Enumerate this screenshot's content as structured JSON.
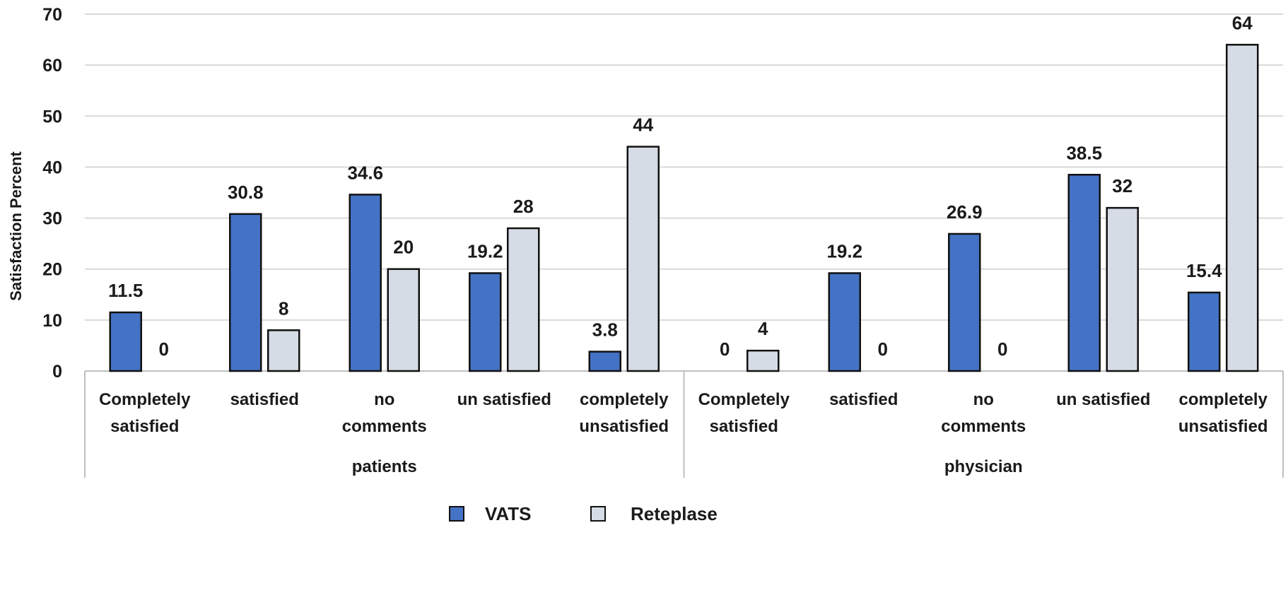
{
  "chart_data": {
    "type": "bar",
    "title": "",
    "xlabel": "",
    "ylabel": "Satisfaction Percent",
    "ylim": [
      0,
      70
    ],
    "yticks": [
      0,
      10,
      20,
      30,
      40,
      50,
      60,
      70
    ],
    "grid": true,
    "legend_position": "bottom",
    "groups": [
      {
        "name": "patients",
        "categories": [
          [
            "Completely",
            "satisfied"
          ],
          [
            "satisfied"
          ],
          [
            "no",
            "comments"
          ],
          [
            "un satisfied"
          ],
          [
            "completely",
            "unsatisfied"
          ]
        ]
      },
      {
        "name": "physician",
        "categories": [
          [
            "Completely",
            "satisfied"
          ],
          [
            "satisfied"
          ],
          [
            "no",
            "comments"
          ],
          [
            "un satisfied"
          ],
          [
            "completely",
            "unsatisfied"
          ]
        ]
      }
    ],
    "series": [
      {
        "name": "VATS",
        "color": "#4472C4",
        "values": [
          11.5,
          30.8,
          34.6,
          19.2,
          3.8,
          0,
          19.2,
          26.9,
          38.5,
          15.4
        ],
        "labels": [
          "11.5",
          "30.8",
          "34.6",
          "19.2",
          "3.8",
          "0",
          "19.2",
          "26.9",
          "38.5",
          "15.4"
        ]
      },
      {
        "name": "Reteplase",
        "color": "#D6DCE5",
        "values": [
          0,
          8,
          20,
          28,
          44,
          4,
          0,
          0,
          32,
          64
        ],
        "labels": [
          "0",
          "8",
          "20",
          "28",
          "44",
          "4",
          "0",
          "0",
          "32",
          "64"
        ]
      }
    ]
  }
}
